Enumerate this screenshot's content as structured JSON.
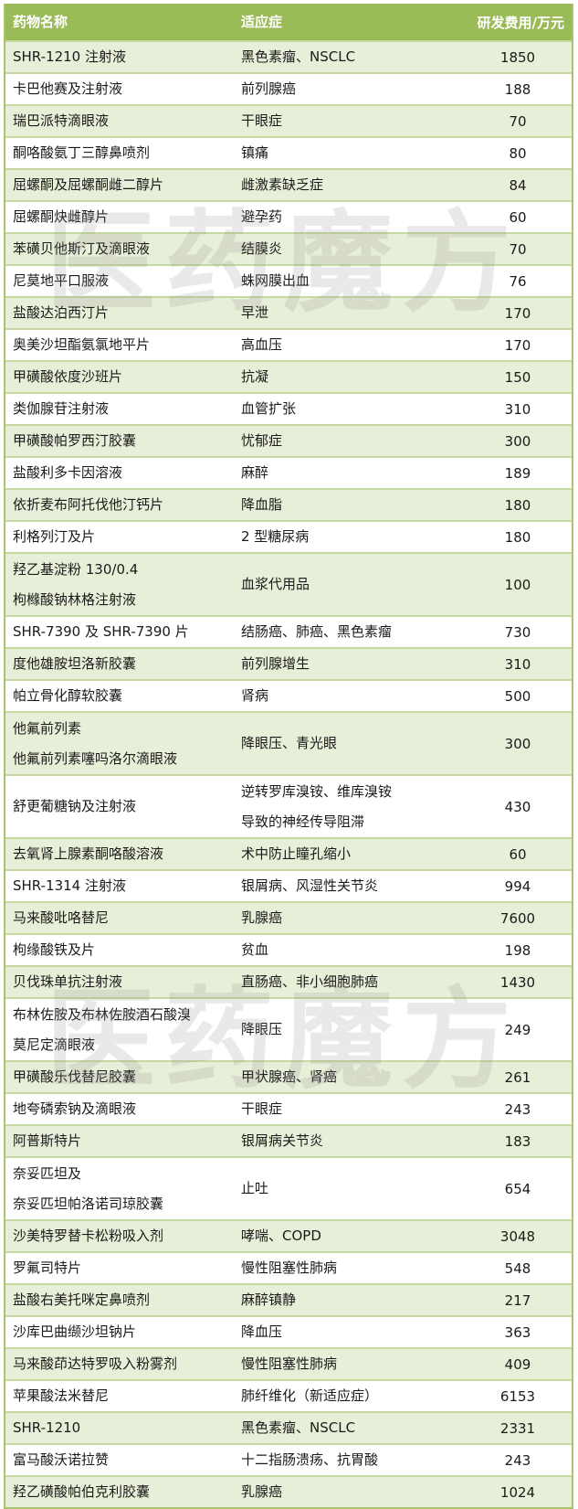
{
  "header": {
    "name": "药物名称",
    "indication": "适应症",
    "cost": "研发费用/万元"
  },
  "watermark": "医药魔方",
  "colors": {
    "header_bg": "#9bbb59",
    "stripe": "#e8efd8",
    "border": "#c6d9a0"
  },
  "rows": [
    {
      "name": [
        "SHR-1210 注射液"
      ],
      "indication": [
        "黑色素瘤、NSCLC"
      ],
      "cost": "1850"
    },
    {
      "name": [
        "卡巴他赛及注射液"
      ],
      "indication": [
        "前列腺癌"
      ],
      "cost": "188"
    },
    {
      "name": [
        "瑞巴派特滴眼液"
      ],
      "indication": [
        "干眼症"
      ],
      "cost": "70"
    },
    {
      "name": [
        "酮咯酸氨丁三醇鼻喷剂"
      ],
      "indication": [
        "镇痛"
      ],
      "cost": "80"
    },
    {
      "name": [
        "屈螺酮及屈螺酮雌二醇片"
      ],
      "indication": [
        "雌激素缺乏症"
      ],
      "cost": "84"
    },
    {
      "name": [
        "屈螺酮炔雌醇片"
      ],
      "indication": [
        "避孕药"
      ],
      "cost": "60"
    },
    {
      "name": [
        "苯磺贝他斯汀及滴眼液"
      ],
      "indication": [
        "结膜炎"
      ],
      "cost": "70"
    },
    {
      "name": [
        "尼莫地平口服液"
      ],
      "indication": [
        "蛛网膜出血"
      ],
      "cost": "76"
    },
    {
      "name": [
        "盐酸达泊西汀片"
      ],
      "indication": [
        "早泄"
      ],
      "cost": "170"
    },
    {
      "name": [
        "奥美沙坦酯氨氯地平片"
      ],
      "indication": [
        "高血压"
      ],
      "cost": "170"
    },
    {
      "name": [
        "甲磺酸依度沙班片"
      ],
      "indication": [
        "抗凝"
      ],
      "cost": "150"
    },
    {
      "name": [
        "类伽腺苷注射液"
      ],
      "indication": [
        "血管扩张"
      ],
      "cost": "310"
    },
    {
      "name": [
        "甲磺酸帕罗西汀胶囊"
      ],
      "indication": [
        "忧郁症"
      ],
      "cost": "300"
    },
    {
      "name": [
        "盐酸利多卡因溶液"
      ],
      "indication": [
        "麻醉"
      ],
      "cost": "189"
    },
    {
      "name": [
        "依折麦布阿托伐他汀钙片"
      ],
      "indication": [
        "降血脂"
      ],
      "cost": "180"
    },
    {
      "name": [
        "利格列汀及片"
      ],
      "indication": [
        "2 型糖尿病"
      ],
      "cost": "180"
    },
    {
      "name": [
        "羟乙基淀粉 130/0.4",
        "枸橼酸钠林格注射液"
      ],
      "indication": [
        "血浆代用品"
      ],
      "cost": "100"
    },
    {
      "name": [
        "SHR-7390 及 SHR-7390 片"
      ],
      "indication": [
        "结肠癌、肺癌、黑色素瘤"
      ],
      "cost": "730"
    },
    {
      "name": [
        "度他雄胺坦洛新胶囊"
      ],
      "indication": [
        "前列腺增生"
      ],
      "cost": "310"
    },
    {
      "name": [
        "帕立骨化醇软胶囊"
      ],
      "indication": [
        "肾病"
      ],
      "cost": "500"
    },
    {
      "name": [
        "他氟前列素",
        "他氟前列素噻吗洛尔滴眼液"
      ],
      "indication": [
        "降眼压、青光眼"
      ],
      "cost": "300"
    },
    {
      "name": [
        "舒更葡糖钠及注射液"
      ],
      "indication": [
        "逆转罗库溴铵、维库溴铵",
        "导致的神经传导阻滞"
      ],
      "cost": "430"
    },
    {
      "name": [
        "去氧肾上腺素酮咯酸溶液"
      ],
      "indication": [
        "术中防止瞳孔缩小"
      ],
      "cost": "60"
    },
    {
      "name": [
        "SHR-1314 注射液"
      ],
      "indication": [
        "银屑病、风湿性关节炎"
      ],
      "cost": "994"
    },
    {
      "name": [
        "马来酸吡咯替尼"
      ],
      "indication": [
        "乳腺癌"
      ],
      "cost": "7600"
    },
    {
      "name": [
        "枸缘酸铁及片"
      ],
      "indication": [
        "贫血"
      ],
      "cost": "198"
    },
    {
      "name": [
        "贝伐珠单抗注射液"
      ],
      "indication": [
        "直肠癌、非小细胞肺癌"
      ],
      "cost": "1430"
    },
    {
      "name": [
        "布林佐胺及布林佐胺酒石酸溴",
        "莫尼定滴眼液"
      ],
      "indication": [
        "降眼压"
      ],
      "cost": "249"
    },
    {
      "name": [
        "甲磺酸乐伐替尼胶囊"
      ],
      "indication": [
        "甲状腺癌、肾癌"
      ],
      "cost": "261"
    },
    {
      "name": [
        "地夸磷索钠及滴眼液"
      ],
      "indication": [
        "干眼症"
      ],
      "cost": "243"
    },
    {
      "name": [
        "阿普斯特片"
      ],
      "indication": [
        "银屑病关节炎"
      ],
      "cost": "183"
    },
    {
      "name": [
        "奈妥匹坦及",
        "奈妥匹坦帕洛诺司琼胶囊"
      ],
      "indication": [
        "止吐"
      ],
      "cost": "654"
    },
    {
      "name": [
        "沙美特罗替卡松粉吸入剂"
      ],
      "indication": [
        "哮喘、COPD"
      ],
      "cost": "3048"
    },
    {
      "name": [
        "罗氟司特片"
      ],
      "indication": [
        "慢性阻塞性肺病"
      ],
      "cost": "548"
    },
    {
      "name": [
        "盐酸右美托咪定鼻喷剂"
      ],
      "indication": [
        "麻醉镇静"
      ],
      "cost": "217"
    },
    {
      "name": [
        "沙库巴曲缬沙坦钠片"
      ],
      "indication": [
        "降血压"
      ],
      "cost": "363"
    },
    {
      "name": [
        "马来酸茚达特罗吸入粉雾剂"
      ],
      "indication": [
        "慢性阻塞性肺病"
      ],
      "cost": "409"
    },
    {
      "name": [
        "苹果酸法米替尼"
      ],
      "indication": [
        "肺纤维化（新适应症）"
      ],
      "cost": "6153"
    },
    {
      "name": [
        "SHR-1210"
      ],
      "indication": [
        "黑色素瘤、NSCLC"
      ],
      "cost": "2331"
    },
    {
      "name": [
        "富马酸沃诺拉赞"
      ],
      "indication": [
        "十二指肠溃疡、抗胃酸"
      ],
      "cost": "243"
    },
    {
      "name": [
        "羟乙磺酸帕伯克利胶囊"
      ],
      "indication": [
        "乳腺癌"
      ],
      "cost": "1024"
    }
  ]
}
